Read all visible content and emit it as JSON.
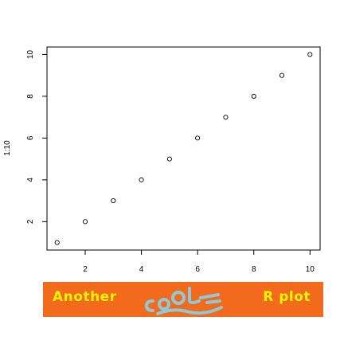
{
  "chart_data": {
    "type": "scatter",
    "title": "",
    "xlabel": "",
    "ylabel": "1:10",
    "x": [
      1,
      2,
      3,
      4,
      5,
      6,
      7,
      8,
      9,
      10
    ],
    "y": [
      1,
      2,
      3,
      4,
      5,
      6,
      7,
      8,
      9,
      10
    ],
    "xlim": [
      0.64,
      10.36
    ],
    "ylim": [
      0.64,
      10.36
    ],
    "xticks": [
      2,
      4,
      6,
      8,
      10
    ],
    "yticks": [
      2,
      4,
      6,
      8,
      10
    ],
    "grid": false,
    "marker": "open-circle",
    "marker_color": "#000000"
  },
  "banner": {
    "left_text": "Another",
    "logo_text": "cool",
    "right_text": "R plot",
    "background": "#f26a1b",
    "text_color": "#f5f500",
    "logo_color": "#8ec9d8"
  }
}
